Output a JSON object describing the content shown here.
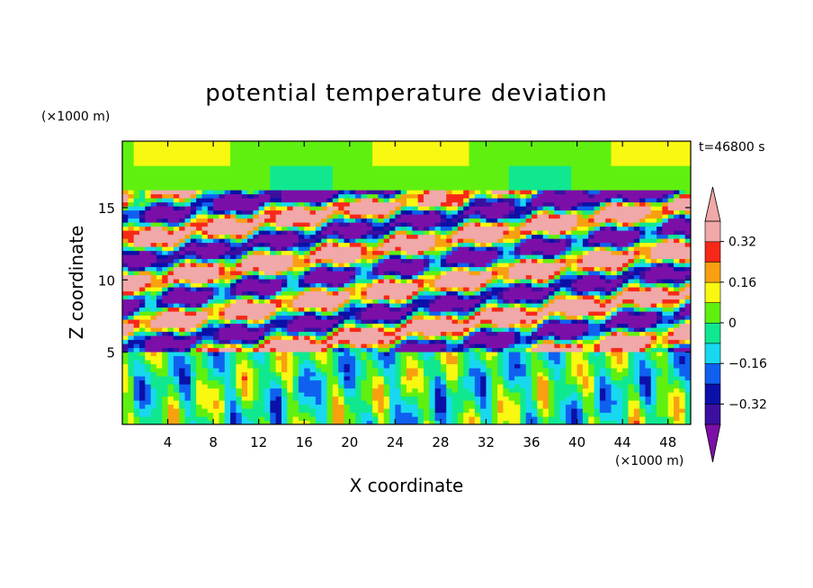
{
  "chart_data": {
    "type": "heatmap",
    "title": "potential temperature deviation",
    "xlabel": "X coordinate",
    "ylabel": "Z coordinate",
    "x_unit": "(×1000 m)",
    "y_unit": "(×1000 m)",
    "time_label": "t=46800 s",
    "xlim": [
      0,
      50
    ],
    "ylim": [
      0,
      19.6
    ],
    "x_ticks": [
      4,
      8,
      12,
      16,
      20,
      24,
      28,
      32,
      36,
      40,
      44,
      48
    ],
    "y_ticks": [
      5,
      10,
      15
    ],
    "colorbar": {
      "levels": [
        -0.4,
        -0.32,
        -0.24,
        -0.16,
        -0.08,
        0,
        0.08,
        0.16,
        0.24,
        0.32,
        0.4
      ],
      "tick_labels": [
        {
          "value": 0.32,
          "label": "0.32"
        },
        {
          "value": 0.16,
          "label": "0.16"
        },
        {
          "value": 0,
          "label": "0"
        },
        {
          "value": -0.16,
          "label": "−0.16"
        },
        {
          "value": -0.32,
          "label": "−0.32"
        }
      ],
      "colors": [
        "#7b0fa8",
        "#3b0fa0",
        "#0a10a8",
        "#1060f0",
        "#18d8f0",
        "#10e890",
        "#60f010",
        "#f8f810",
        "#f8a010",
        "#f82818",
        "#f0a8a8"
      ],
      "extend": "both"
    },
    "bands": [
      {
        "z": [
          0,
          5.0
        ],
        "description": "lower layer: weak mixed anomalies, mostly cyan/green with scattered yellow-orange and blue cells"
      },
      {
        "z": [
          5.0,
          16.0
        ],
        "description": "turbulent layer: alternating strong positive (pink/red) and negative (purple/blue) tilted streaks"
      },
      {
        "z": [
          16.0,
          19.6
        ],
        "description": "upper layer: near-zero green with lighter green at top"
      }
    ]
  }
}
